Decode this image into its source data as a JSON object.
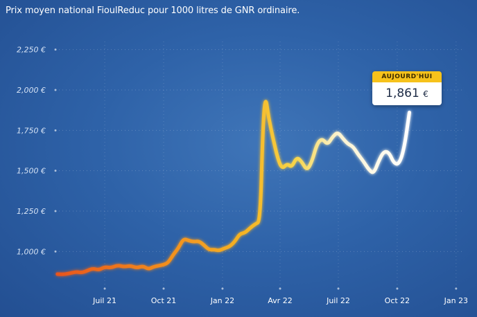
{
  "title": "Prix moyen national FioulReduc pour 1000 litres de GNR ordinaire.",
  "callout": {
    "label": "AUJOURD'HUI",
    "value": "1,861",
    "unit": "€"
  },
  "chart_data": {
    "type": "line",
    "title": "Prix moyen national FioulReduc pour 1000 litres de GNR ordinaire.",
    "xlabel": "",
    "ylabel": "",
    "ylim": [
      770,
      2300
    ],
    "y_ticks": [
      {
        "value": 1000,
        "label": "1,000 €"
      },
      {
        "value": 1250,
        "label": "1,250 €"
      },
      {
        "value": 1500,
        "label": "1,500 €"
      },
      {
        "value": 1750,
        "label": "1,750 €"
      },
      {
        "value": 2000,
        "label": "2,000 €"
      },
      {
        "value": 2250,
        "label": "2,250 €"
      }
    ],
    "x_ticks": [
      {
        "date": "2021-07-01",
        "label": "Juil 21"
      },
      {
        "date": "2021-10-01",
        "label": "Oct 21"
      },
      {
        "date": "2022-01-01",
        "label": "Jan 22"
      },
      {
        "date": "2022-04-01",
        "label": "Avr 22"
      },
      {
        "date": "2022-07-01",
        "label": "Juil 22"
      },
      {
        "date": "2022-10-01",
        "label": "Oct 22"
      },
      {
        "date": "2023-01-01",
        "label": "Jan 23"
      }
    ],
    "xlim": [
      "2021-04-15",
      "2023-01-12"
    ],
    "grid": true,
    "colors": [
      "#e8541c",
      "#f5a623",
      "#f7cf2b",
      "#ffffff"
    ],
    "series": [
      {
        "values": [
          {
            "x": "2021-04-18",
            "y": 860
          },
          {
            "x": "2021-04-28",
            "y": 858
          },
          {
            "x": "2021-05-08",
            "y": 865
          },
          {
            "x": "2021-05-18",
            "y": 875
          },
          {
            "x": "2021-05-25",
            "y": 868
          },
          {
            "x": "2021-06-02",
            "y": 878
          },
          {
            "x": "2021-06-12",
            "y": 895
          },
          {
            "x": "2021-06-22",
            "y": 885
          },
          {
            "x": "2021-07-01",
            "y": 905
          },
          {
            "x": "2021-07-11",
            "y": 898
          },
          {
            "x": "2021-07-21",
            "y": 915
          },
          {
            "x": "2021-07-31",
            "y": 905
          },
          {
            "x": "2021-08-10",
            "y": 912
          },
          {
            "x": "2021-08-20",
            "y": 898
          },
          {
            "x": "2021-08-30",
            "y": 910
          },
          {
            "x": "2021-09-07",
            "y": 890
          },
          {
            "x": "2021-09-15",
            "y": 905
          },
          {
            "x": "2021-09-23",
            "y": 912
          },
          {
            "x": "2021-10-01",
            "y": 918
          },
          {
            "x": "2021-10-08",
            "y": 930
          },
          {
            "x": "2021-10-16",
            "y": 980
          },
          {
            "x": "2021-10-24",
            "y": 1020
          },
          {
            "x": "2021-11-01",
            "y": 1080
          },
          {
            "x": "2021-11-09",
            "y": 1068
          },
          {
            "x": "2021-11-17",
            "y": 1060
          },
          {
            "x": "2021-11-25",
            "y": 1065
          },
          {
            "x": "2021-12-03",
            "y": 1040
          },
          {
            "x": "2021-12-11",
            "y": 1010
          },
          {
            "x": "2021-12-19",
            "y": 1012
          },
          {
            "x": "2021-12-27",
            "y": 1005
          },
          {
            "x": "2022-01-04",
            "y": 1020
          },
          {
            "x": "2022-01-12",
            "y": 1030
          },
          {
            "x": "2022-01-20",
            "y": 1060
          },
          {
            "x": "2022-01-28",
            "y": 1110
          },
          {
            "x": "2022-02-05",
            "y": 1115
          },
          {
            "x": "2022-02-13",
            "y": 1145
          },
          {
            "x": "2022-02-21",
            "y": 1170
          },
          {
            "x": "2022-03-01",
            "y": 1185
          },
          {
            "x": "2022-03-05",
            "y": 1760
          },
          {
            "x": "2022-03-09",
            "y": 1970
          },
          {
            "x": "2022-03-14",
            "y": 1830
          },
          {
            "x": "2022-03-21",
            "y": 1700
          },
          {
            "x": "2022-03-28",
            "y": 1580
          },
          {
            "x": "2022-04-04",
            "y": 1510
          },
          {
            "x": "2022-04-12",
            "y": 1545
          },
          {
            "x": "2022-04-19",
            "y": 1520
          },
          {
            "x": "2022-04-27",
            "y": 1585
          },
          {
            "x": "2022-05-05",
            "y": 1555
          },
          {
            "x": "2022-05-13",
            "y": 1500
          },
          {
            "x": "2022-05-21",
            "y": 1560
          },
          {
            "x": "2022-05-29",
            "y": 1670
          },
          {
            "x": "2022-06-06",
            "y": 1700
          },
          {
            "x": "2022-06-14",
            "y": 1660
          },
          {
            "x": "2022-06-22",
            "y": 1710
          },
          {
            "x": "2022-06-30",
            "y": 1740
          },
          {
            "x": "2022-07-08",
            "y": 1700
          },
          {
            "x": "2022-07-16",
            "y": 1665
          },
          {
            "x": "2022-07-24",
            "y": 1650
          },
          {
            "x": "2022-08-01",
            "y": 1600
          },
          {
            "x": "2022-08-09",
            "y": 1560
          },
          {
            "x": "2022-08-17",
            "y": 1510
          },
          {
            "x": "2022-08-25",
            "y": 1480
          },
          {
            "x": "2022-09-02",
            "y": 1560
          },
          {
            "x": "2022-09-10",
            "y": 1620
          },
          {
            "x": "2022-09-18",
            "y": 1615
          },
          {
            "x": "2022-09-26",
            "y": 1545
          },
          {
            "x": "2022-10-04",
            "y": 1540
          },
          {
            "x": "2022-10-12",
            "y": 1640
          },
          {
            "x": "2022-10-20",
            "y": 1861
          }
        ]
      }
    ]
  }
}
